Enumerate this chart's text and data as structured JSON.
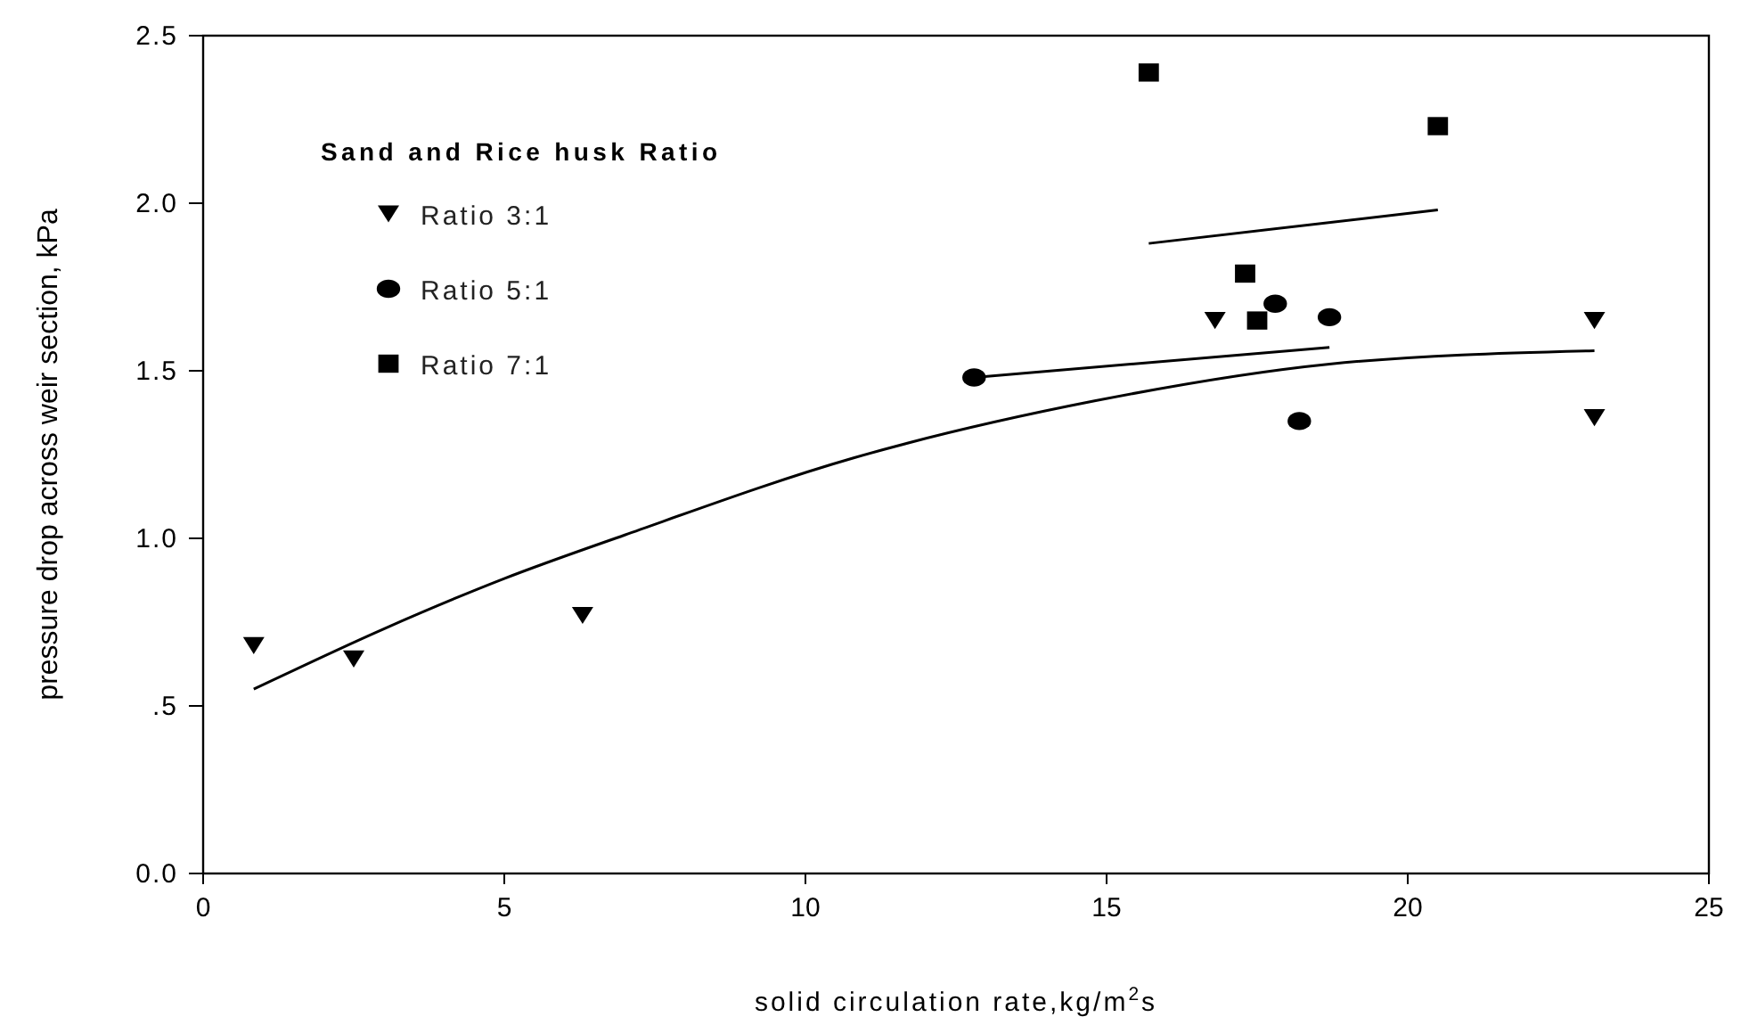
{
  "chart_data": {
    "type": "scatter",
    "xlabel": "solid circulation rate,kg/m$^{2}$s",
    "ylabel": "pressure drop across weir section, kPa",
    "legend_title": "Sand and Rice husk Ratio",
    "legend": "top left",
    "grid": false,
    "xlim": [
      0,
      25
    ],
    "xticks": [
      0,
      5,
      10,
      15,
      20,
      25
    ],
    "ylim": [
      0,
      2.5
    ],
    "yticks": [
      {
        "value": 0,
        "label": "0.0"
      },
      {
        "value": 0.5,
        "label": ".5"
      },
      {
        "value": 1,
        "label": "1.0"
      },
      {
        "value": 1.5,
        "label": "1.5"
      },
      {
        "value": 2,
        "label": "2.0"
      },
      {
        "value": 2.5,
        "label": "2.5"
      }
    ],
    "series": [
      {
        "name": "Ratio 3:1",
        "type": "scatter",
        "marker": "triangle",
        "color": "#000000",
        "x": [
          0.84,
          2.5,
          6.3,
          16.8,
          23.1,
          23.1
        ],
        "values": [
          0.68,
          0.64,
          0.77,
          1.65,
          1.65,
          1.36
        ]
      },
      {
        "name": "Ratio 5:1",
        "type": "scatter",
        "marker": "circle",
        "color": "#000000",
        "x": [
          12.8,
          17.8,
          18.7,
          18.2
        ],
        "values": [
          1.48,
          1.7,
          1.66,
          1.35
        ]
      },
      {
        "name": "Ratio 7:1",
        "type": "scatter",
        "marker": "square",
        "color": "#000000",
        "x": [
          15.7,
          20.5,
          17.3,
          17.5
        ],
        "values": [
          2.39,
          2.23,
          1.79,
          1.65
        ]
      },
      {
        "type": "line",
        "marker": "none",
        "line_style": "solid",
        "color": "#000000",
        "x": [
          0.84,
          3,
          5,
          7,
          10.8,
          14.8,
          18.7,
          23.1
        ],
        "values": [
          0.55,
          0.73,
          0.88,
          1.01,
          1.24,
          1.41,
          1.52,
          1.56
        ]
      },
      {
        "type": "line",
        "marker": "none",
        "line_style": "solid",
        "color": "#000000",
        "x": [
          12.8,
          18.7
        ],
        "values": [
          1.48,
          1.57
        ]
      },
      {
        "type": "line",
        "marker": "none",
        "line_style": "solid",
        "color": "#000000",
        "x": [
          15.7,
          20.5
        ],
        "values": [
          1.88,
          1.98
        ]
      }
    ]
  }
}
